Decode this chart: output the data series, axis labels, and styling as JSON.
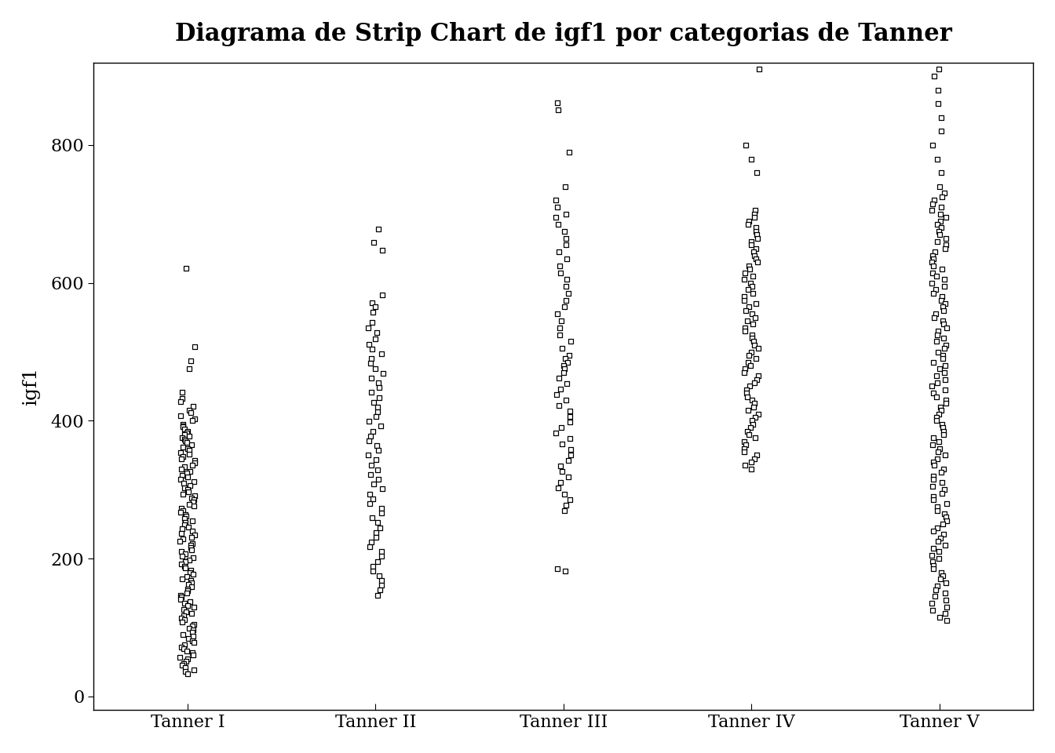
{
  "title": "Diagrama de Strip Chart de igf1 por categorias de Tanner",
  "ylabel": "igf1",
  "xlabel": "",
  "categories": [
    "Tanner I",
    "Tanner II",
    "Tanner III",
    "Tanner IV",
    "Tanner V"
  ],
  "ylim": [
    -20,
    920
  ],
  "yticks": [
    0,
    200,
    400,
    600,
    800
  ],
  "background_color": "#ffffff",
  "marker": "s",
  "marker_size": 14,
  "marker_facecolor": "white",
  "marker_edgecolor": "black",
  "marker_edgewidth": 0.9,
  "jitter_strength": 0.04,
  "title_fontsize": 22,
  "axis_label_fontsize": 18,
  "tick_fontsize": 16,
  "tanner_I": [
    621,
    507,
    487,
    476,
    441,
    432,
    428,
    421,
    415,
    412,
    407,
    403,
    400,
    395,
    393,
    391,
    388,
    385,
    382,
    380,
    378,
    375,
    373,
    371,
    368,
    365,
    362,
    360,
    357,
    354,
    351,
    348,
    345,
    342,
    339,
    336,
    333,
    330,
    327,
    324,
    321,
    318,
    315,
    312,
    309,
    306,
    303,
    300,
    297,
    294,
    291,
    288,
    285,
    282,
    279,
    276,
    273,
    270,
    267,
    264,
    261,
    258,
    255,
    252,
    249,
    246,
    243,
    240,
    237,
    234,
    231,
    228,
    225,
    222,
    219,
    216,
    213,
    210,
    207,
    204,
    201,
    198,
    195,
    192,
    189,
    186,
    183,
    180,
    177,
    174,
    171,
    168,
    165,
    162,
    159,
    156,
    153,
    150,
    147,
    144,
    141,
    138,
    135,
    132,
    129,
    126,
    123,
    120,
    117,
    114,
    111,
    108,
    105,
    102,
    99,
    96,
    93,
    90,
    87,
    84,
    81,
    78,
    75,
    72,
    69,
    66,
    63,
    60,
    57,
    54,
    51,
    48,
    45,
    42,
    39,
    36,
    33
  ],
  "tanner_II": [
    678,
    659,
    647,
    582,
    571,
    565,
    557,
    543,
    535,
    528,
    519,
    511,
    504,
    497,
    490,
    483,
    476,
    469,
    462,
    455,
    448,
    441,
    434,
    427,
    420,
    413,
    406,
    399,
    392,
    385,
    378,
    371,
    364,
    357,
    350,
    343,
    336,
    329,
    322,
    315,
    308,
    301,
    294,
    287,
    280,
    273,
    266,
    259,
    252,
    245,
    238,
    231,
    224,
    217,
    210,
    203,
    196,
    189,
    182,
    175,
    168,
    161,
    154,
    147
  ],
  "tanner_III": [
    862,
    851,
    790,
    740,
    720,
    710,
    700,
    695,
    685,
    675,
    665,
    655,
    645,
    635,
    625,
    615,
    605,
    595,
    585,
    575,
    565,
    555,
    545,
    535,
    525,
    515,
    505,
    495,
    490,
    485,
    480,
    475,
    470,
    462,
    454,
    446,
    438,
    430,
    422,
    414,
    406,
    398,
    390,
    382,
    374,
    366,
    358,
    350,
    342,
    334,
    326,
    318,
    310,
    302,
    294,
    286,
    278,
    270,
    185,
    182
  ],
  "tanner_IV": [
    910,
    800,
    780,
    760,
    705,
    700,
    695,
    690,
    685,
    680,
    675,
    670,
    665,
    660,
    655,
    650,
    645,
    640,
    635,
    630,
    625,
    620,
    615,
    610,
    605,
    600,
    595,
    590,
    585,
    580,
    575,
    570,
    565,
    560,
    555,
    550,
    545,
    540,
    535,
    530,
    525,
    520,
    515,
    510,
    505,
    500,
    495,
    490,
    485,
    480,
    475,
    470,
    465,
    460,
    455,
    450,
    445,
    440,
    435,
    430,
    425,
    420,
    415,
    410,
    405,
    400,
    395,
    390,
    385,
    380,
    375,
    370,
    365,
    360,
    355,
    350,
    345,
    340,
    335,
    330
  ],
  "tanner_V": [
    910,
    900,
    880,
    860,
    840,
    820,
    800,
    780,
    760,
    740,
    730,
    725,
    720,
    715,
    710,
    705,
    700,
    695,
    690,
    685,
    680,
    675,
    670,
    665,
    660,
    655,
    650,
    645,
    640,
    635,
    630,
    625,
    620,
    615,
    610,
    605,
    600,
    595,
    590,
    585,
    580,
    575,
    570,
    565,
    560,
    555,
    550,
    545,
    540,
    535,
    530,
    525,
    520,
    515,
    510,
    505,
    500,
    495,
    490,
    485,
    480,
    475,
    470,
    465,
    460,
    455,
    450,
    445,
    440,
    435,
    430,
    425,
    420,
    415,
    410,
    405,
    400,
    395,
    390,
    385,
    380,
    375,
    370,
    365,
    360,
    355,
    350,
    345,
    340,
    335,
    330,
    325,
    320,
    315,
    310,
    305,
    300,
    295,
    290,
    285,
    280,
    275,
    270,
    265,
    260,
    255,
    250,
    245,
    240,
    235,
    230,
    225,
    220,
    215,
    210,
    205,
    200,
    195,
    190,
    185,
    180,
    175,
    170,
    165,
    160,
    155,
    150,
    145,
    140,
    135,
    130,
    125,
    120,
    115,
    110
  ]
}
